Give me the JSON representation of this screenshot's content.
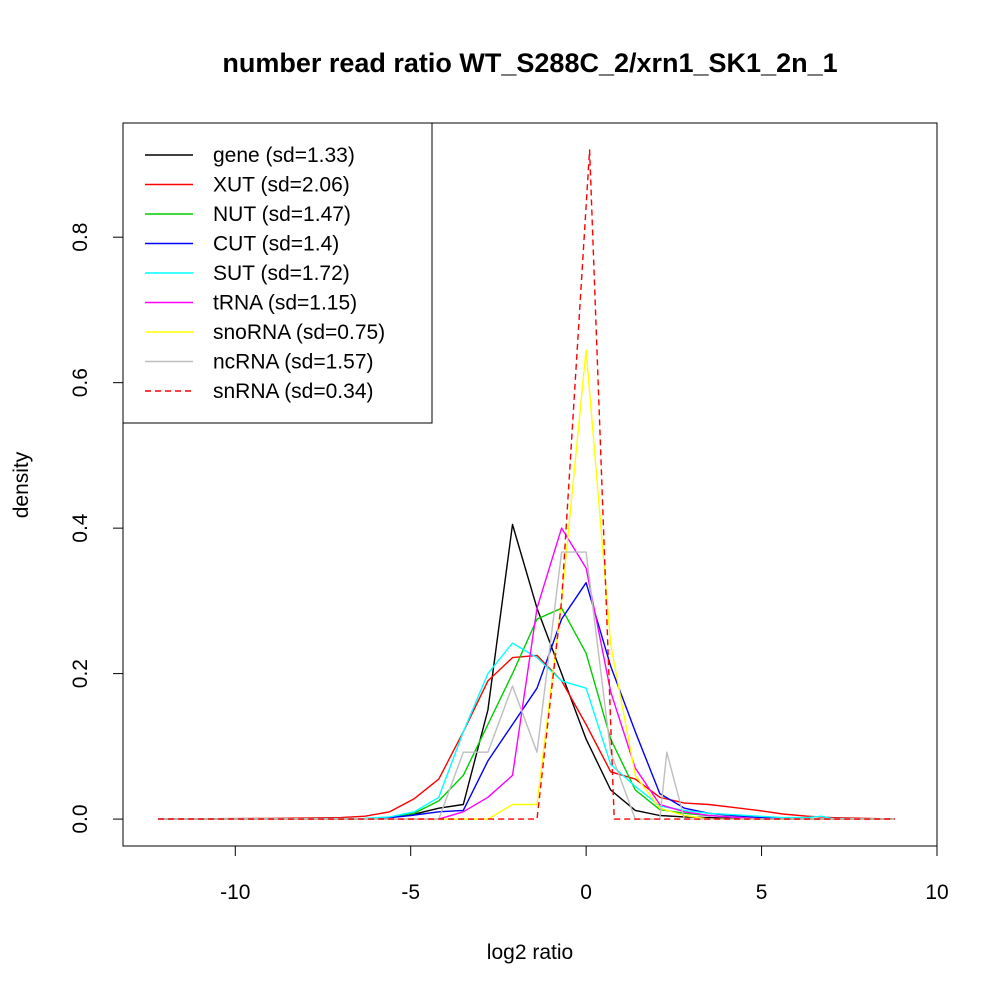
{
  "chart_data": {
    "type": "line",
    "title": "number read ratio WT_S288C_2/xrn1_SK1_2n_1",
    "xlabel": "log2 ratio",
    "ylabel": "density",
    "xlim": [
      -13.2,
      10.0
    ],
    "ylim": [
      -0.037,
      0.957
    ],
    "xticks": [
      -10,
      -5,
      0,
      5,
      10
    ],
    "xtick_labels": [
      "-10",
      "-5",
      "0",
      "5",
      "10"
    ],
    "yticks": [
      0.0,
      0.2,
      0.4,
      0.6,
      0.8
    ],
    "ytick_labels": [
      "0.0",
      "0.2",
      "0.4",
      "0.6",
      "0.8"
    ],
    "grid": false,
    "legend_position": "top-left",
    "series": [
      {
        "name": "gene (sd=1.33)",
        "color": "#000000",
        "dash": false,
        "x": [
          -12.2,
          -9.0,
          -6.5,
          -5.5,
          -4.8,
          -4.2,
          -3.5,
          -2.8,
          -2.1,
          -1.4,
          -0.7,
          0.0,
          0.7,
          1.4,
          2.1,
          2.8,
          3.5,
          4.2,
          5.0,
          6.0,
          7.0,
          8.8
        ],
        "y": [
          0,
          0,
          0,
          0.003,
          0.008,
          0.015,
          0.02,
          0.15,
          0.405,
          0.29,
          0.2,
          0.11,
          0.04,
          0.012,
          0.005,
          0.003,
          0.002,
          0.001,
          0,
          0,
          0,
          0
        ]
      },
      {
        "name": "XUT (sd=2.06)",
        "color": "#ff0000",
        "dash": false,
        "x": [
          -12.2,
          -9.0,
          -7.0,
          -6.3,
          -5.6,
          -4.9,
          -4.2,
          -3.5,
          -2.8,
          -2.1,
          -1.4,
          -0.7,
          0.0,
          0.7,
          1.4,
          2.1,
          2.8,
          3.5,
          4.2,
          4.9,
          5.6,
          6.3,
          7.0,
          8.8
        ],
        "y": [
          0,
          0.001,
          0.002,
          0.004,
          0.01,
          0.028,
          0.055,
          0.12,
          0.19,
          0.222,
          0.225,
          0.19,
          0.13,
          0.065,
          0.055,
          0.03,
          0.022,
          0.02,
          0.016,
          0.012,
          0.007,
          0.004,
          0.002,
          0
        ]
      },
      {
        "name": "NUT (sd=1.47)",
        "color": "#00cd00",
        "dash": false,
        "x": [
          -12.2,
          -6.5,
          -5.6,
          -4.9,
          -4.2,
          -3.5,
          -2.8,
          -2.1,
          -1.4,
          -0.7,
          0.0,
          0.7,
          1.4,
          2.1,
          2.8,
          3.5,
          4.2,
          5.0,
          8.8
        ],
        "y": [
          0,
          0,
          0.002,
          0.008,
          0.025,
          0.06,
          0.13,
          0.2,
          0.275,
          0.29,
          0.228,
          0.11,
          0.04,
          0.013,
          0.008,
          0.005,
          0.003,
          0,
          0
        ]
      },
      {
        "name": "CUT (sd=1.4)",
        "color": "#0000ff",
        "dash": false,
        "x": [
          -12.2,
          -6.0,
          -5.0,
          -4.2,
          -3.5,
          -2.8,
          -2.1,
          -1.4,
          -0.7,
          0.0,
          0.7,
          1.4,
          2.1,
          2.8,
          3.5,
          4.2,
          5.0,
          6.0,
          8.8
        ],
        "y": [
          0,
          0,
          0.005,
          0.01,
          0.012,
          0.08,
          0.13,
          0.18,
          0.275,
          0.325,
          0.21,
          0.12,
          0.035,
          0.015,
          0.008,
          0.005,
          0.002,
          0,
          0
        ]
      },
      {
        "name": "SUT (sd=1.72)",
        "color": "#00ffff",
        "dash": false,
        "x": [
          -12.2,
          -6.3,
          -5.6,
          -4.9,
          -4.2,
          -3.5,
          -2.8,
          -2.1,
          -1.4,
          -0.7,
          0.0,
          0.7,
          1.4,
          2.1,
          2.8,
          3.5,
          4.2,
          4.9,
          5.6,
          6.3,
          6.7,
          7.0,
          8.8
        ],
        "y": [
          0,
          0.001,
          0.003,
          0.01,
          0.03,
          0.12,
          0.2,
          0.242,
          0.222,
          0.19,
          0.18,
          0.075,
          0.045,
          0.018,
          0.012,
          0.008,
          0.006,
          0.004,
          0.002,
          0.002,
          0.004,
          0.001,
          0
        ]
      },
      {
        "name": "tRNA (sd=1.15)",
        "color": "#ff00ff",
        "dash": false,
        "x": [
          -12.2,
          -6.0,
          -4.2,
          -3.5,
          -2.8,
          -2.1,
          -1.4,
          -0.7,
          0.0,
          0.7,
          1.4,
          2.1,
          2.8,
          3.5,
          5.0,
          8.8
        ],
        "y": [
          0,
          0,
          0.0,
          0.01,
          0.03,
          0.06,
          0.29,
          0.4,
          0.345,
          0.175,
          0.07,
          0.02,
          0.01,
          0.005,
          0,
          0
        ]
      },
      {
        "name": "snoRNA (sd=0.75)",
        "color": "#ffff00",
        "dash": false,
        "x": [
          -12.2,
          -3.5,
          -2.8,
          -2.1,
          -1.4,
          -0.7,
          0.0,
          0.7,
          1.4,
          2.1,
          2.8,
          3.5,
          8.8
        ],
        "y": [
          0,
          0,
          0,
          0.02,
          0.02,
          0.3,
          0.645,
          0.24,
          0.06,
          0.015,
          0.005,
          0,
          0
        ]
      },
      {
        "name": "ncRNA (sd=1.57)",
        "color": "#bebebe",
        "dash": false,
        "x": [
          -12.2,
          -4.2,
          -3.5,
          -2.8,
          -2.1,
          -1.4,
          -0.7,
          0.0,
          0.7,
          1.4,
          2.1,
          2.3,
          2.8,
          3.5,
          8.8
        ],
        "y": [
          0,
          0,
          0.092,
          0.092,
          0.183,
          0.092,
          0.367,
          0.367,
          0.092,
          0.0,
          0.0,
          0.092,
          0.0,
          0,
          0
        ]
      },
      {
        "name": "snRNA (sd=0.34)",
        "color": "#ff0000",
        "dash": true,
        "x": [
          -12.2,
          -1.4,
          -0.7,
          0.1,
          0.8,
          8.8
        ],
        "y": [
          0,
          0,
          0.3,
          0.92,
          0,
          0
        ]
      }
    ]
  }
}
